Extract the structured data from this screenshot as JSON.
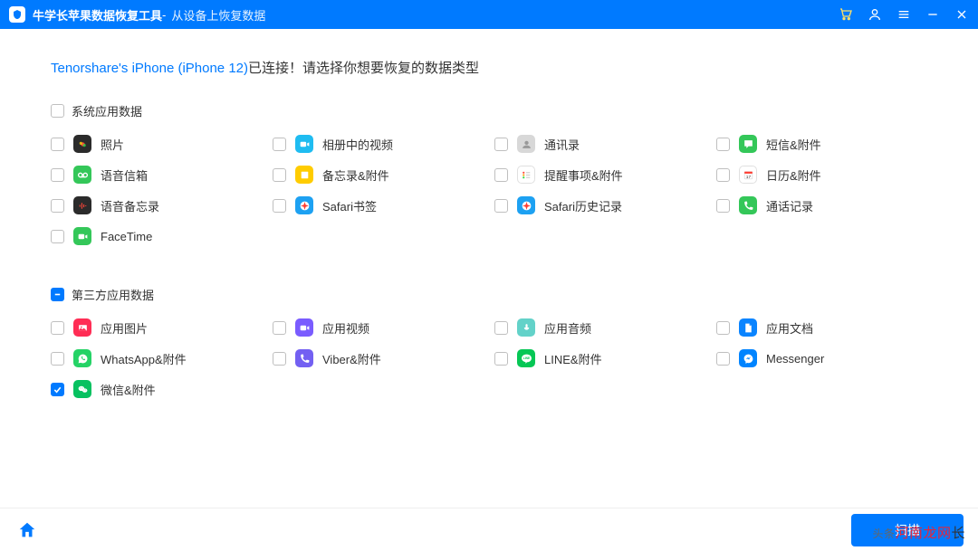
{
  "titlebar": {
    "app_name": "牛学长苹果数据恢复工具",
    "separator": " - ",
    "subtitle": "从设备上恢复数据"
  },
  "heading": {
    "device": "Tenorshare's iPhone (iPhone 12)",
    "rest": "已连接！请选择你想要恢复的数据类型"
  },
  "sections": [
    {
      "title": "系统应用数据",
      "state": "unchecked",
      "items": [
        {
          "label": "照片",
          "checked": false,
          "icon_bg": "#2b2b2b",
          "glyph": "photos"
        },
        {
          "label": "相册中的视频",
          "checked": false,
          "icon_bg": "#1fbcf1",
          "glyph": "video"
        },
        {
          "label": "通讯录",
          "checked": false,
          "icon_bg": "#d8d8d8",
          "glyph": "contacts"
        },
        {
          "label": "短信&附件",
          "checked": false,
          "icon_bg": "#34c759",
          "glyph": "sms"
        },
        {
          "label": "语音信箱",
          "checked": false,
          "icon_bg": "#34c759",
          "glyph": "voicemail"
        },
        {
          "label": "备忘录&附件",
          "checked": false,
          "icon_bg": "#ffcc00",
          "glyph": "notes"
        },
        {
          "label": "提醒事项&附件",
          "checked": false,
          "icon_bg": "#ffffff",
          "glyph": "reminders"
        },
        {
          "label": "日历&附件",
          "checked": false,
          "icon_bg": "#ffffff",
          "glyph": "calendar"
        },
        {
          "label": "语音备忘录",
          "checked": false,
          "icon_bg": "#2b2b2b",
          "glyph": "voicememo"
        },
        {
          "label": "Safari书签",
          "checked": false,
          "icon_bg": "#1da1f2",
          "glyph": "safari"
        },
        {
          "label": "Safari历史记录",
          "checked": false,
          "icon_bg": "#1da1f2",
          "glyph": "safari"
        },
        {
          "label": "通话记录",
          "checked": false,
          "icon_bg": "#34c759",
          "glyph": "phone"
        },
        {
          "label": "FaceTime",
          "checked": false,
          "icon_bg": "#34c759",
          "glyph": "facetime"
        }
      ]
    },
    {
      "title": "第三方应用数据",
      "state": "indeterminate",
      "items": [
        {
          "label": "应用图片",
          "checked": false,
          "icon_bg": "#ff2d55",
          "glyph": "appimg"
        },
        {
          "label": "应用视频",
          "checked": false,
          "icon_bg": "#7a5cff",
          "glyph": "appvid"
        },
        {
          "label": "应用音频",
          "checked": false,
          "icon_bg": "#63d2c9",
          "glyph": "appaudio"
        },
        {
          "label": "应用文档",
          "checked": false,
          "icon_bg": "#0a84ff",
          "glyph": "appdoc"
        },
        {
          "label": "WhatsApp&附件",
          "checked": false,
          "icon_bg": "#25d366",
          "glyph": "whatsapp"
        },
        {
          "label": "Viber&附件",
          "checked": false,
          "icon_bg": "#7360f2",
          "glyph": "viber"
        },
        {
          "label": "LINE&附件",
          "checked": false,
          "icon_bg": "#06c755",
          "glyph": "line"
        },
        {
          "label": "Messenger",
          "checked": false,
          "icon_bg": "#0084ff",
          "glyph": "messenger"
        },
        {
          "label": "微信&附件",
          "checked": true,
          "icon_bg": "#07c160",
          "glyph": "wechat"
        }
      ]
    }
  ],
  "footer": {
    "primary_button": "扫描"
  },
  "watermark": {
    "pre": "头条",
    "hl": "河南龙网",
    "tail": "长"
  },
  "colors": {
    "accent": "#007aff",
    "text": "#333333",
    "border": "#bfbfbf"
  }
}
